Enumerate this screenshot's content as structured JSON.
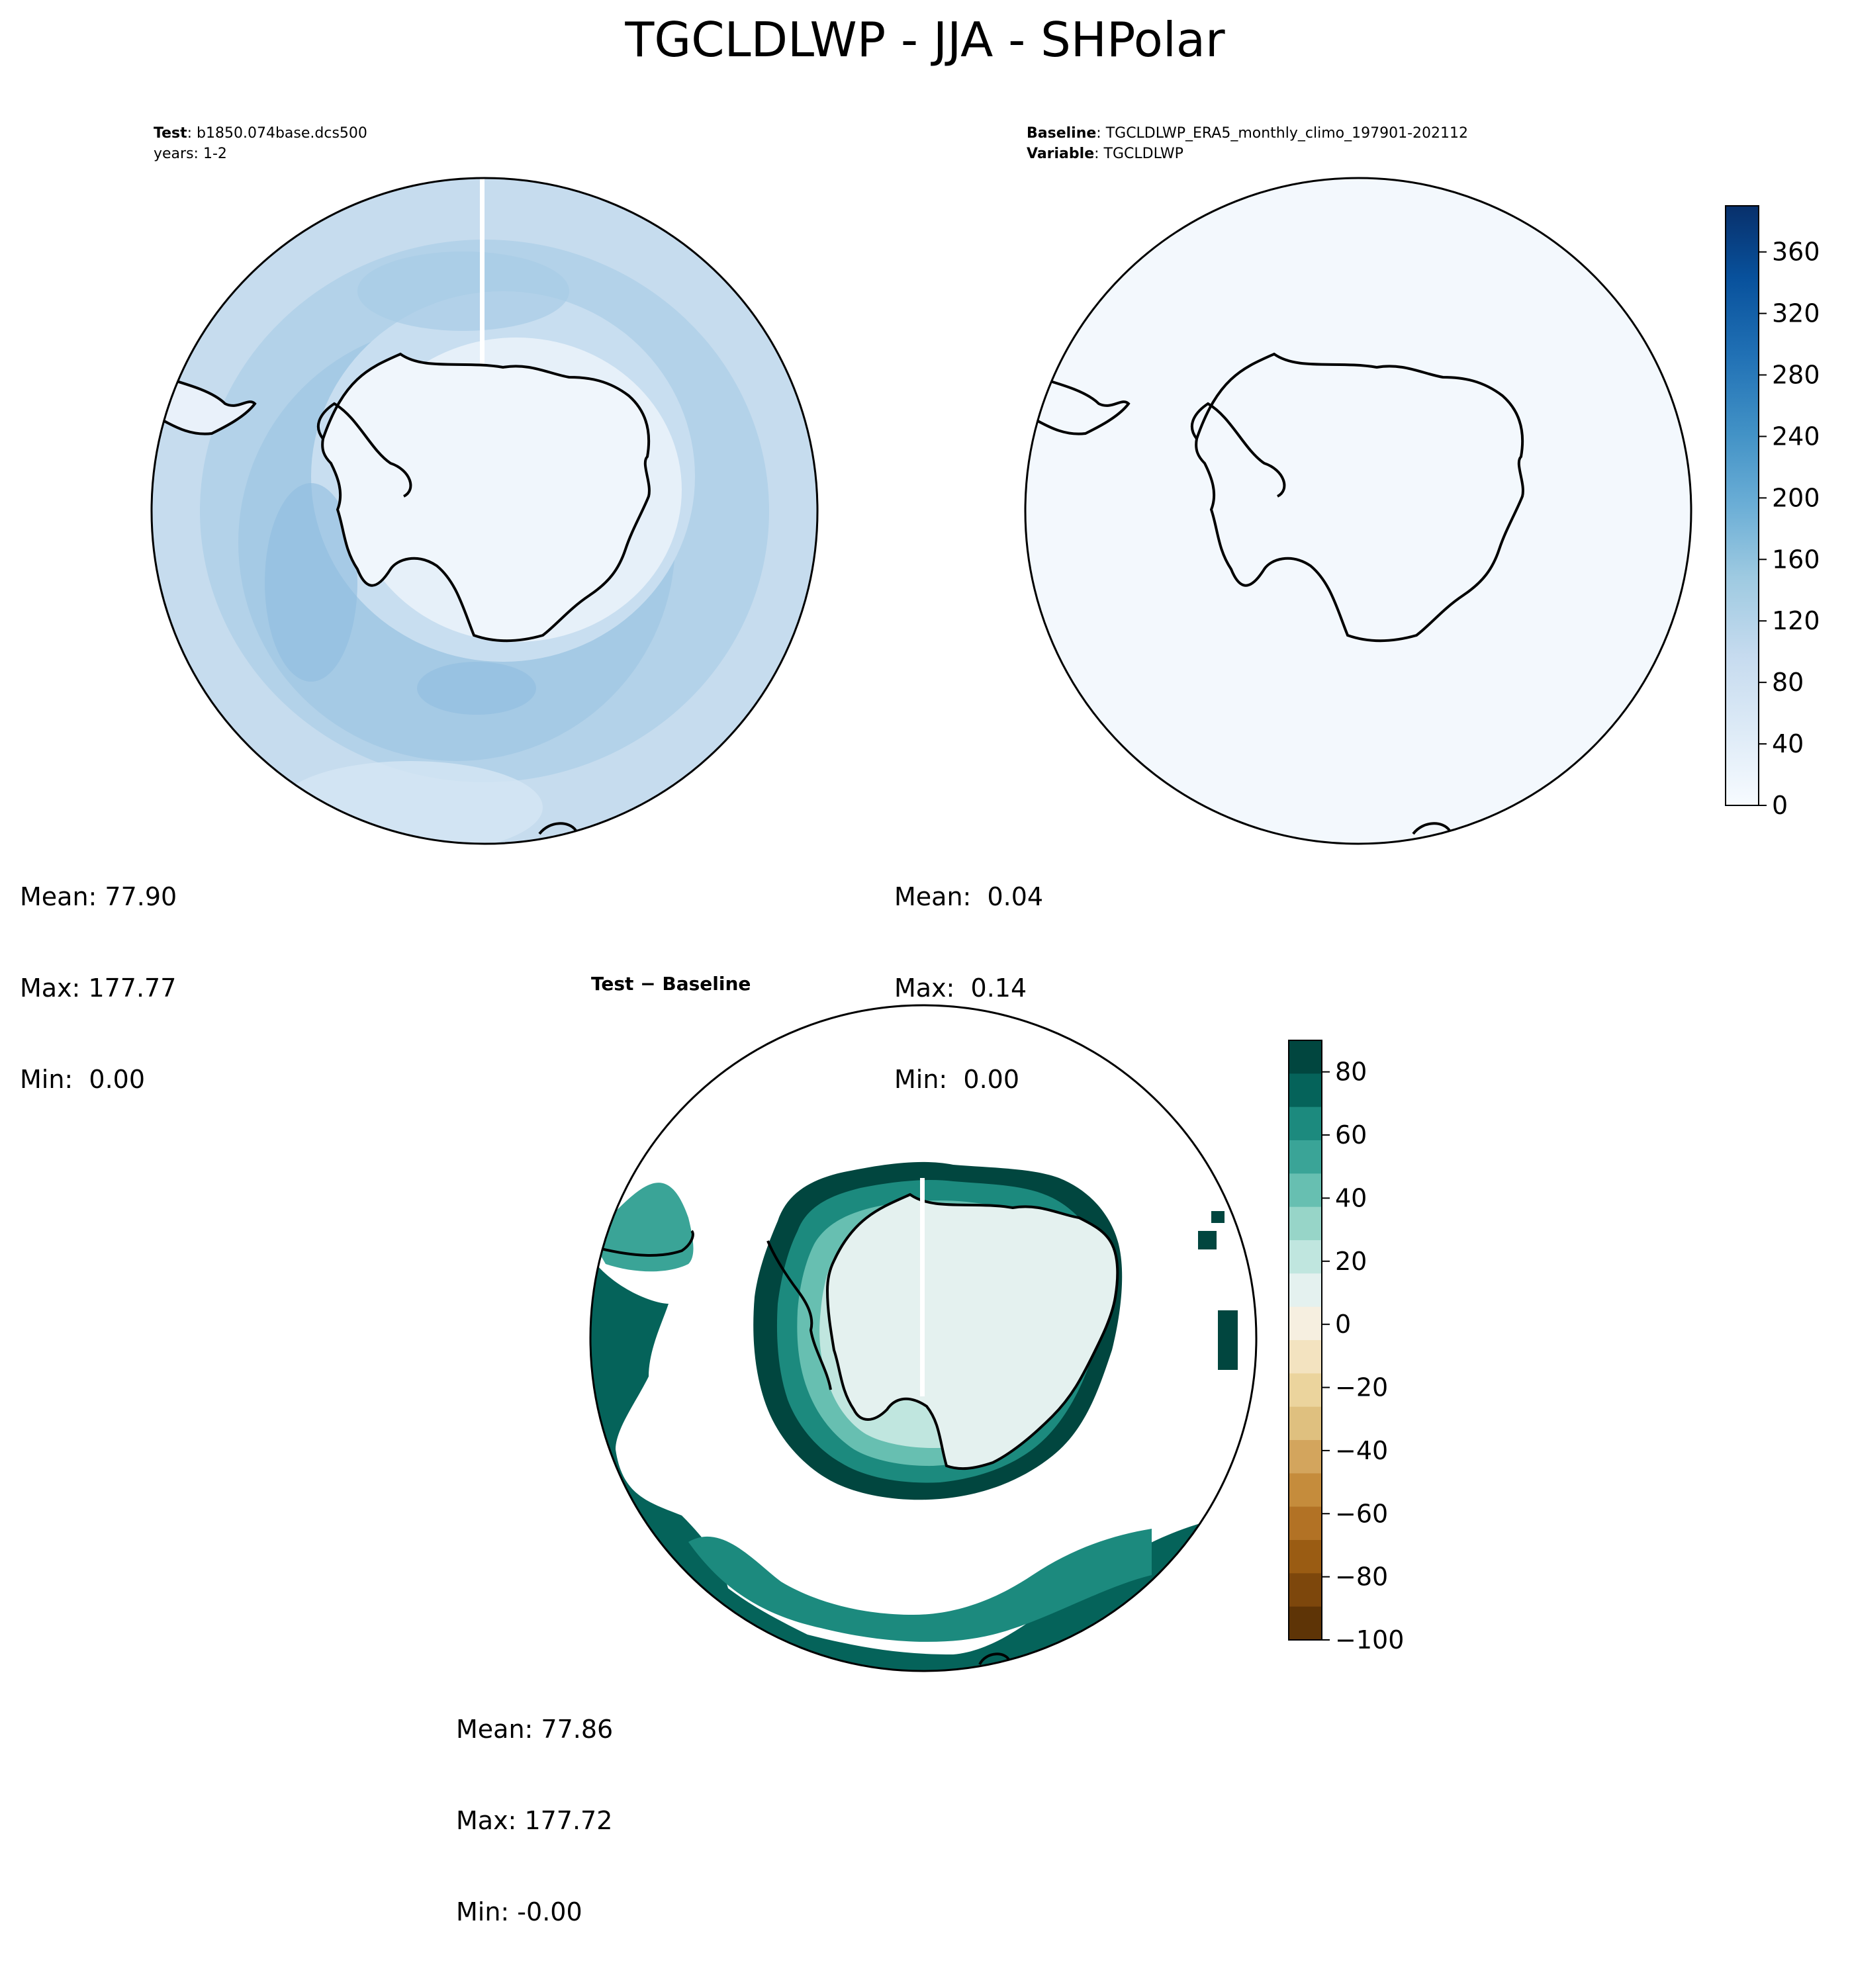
{
  "figure": {
    "title": "TGCLDLWP - JJA - SHPolar"
  },
  "panels": {
    "test": {
      "label_key": "Test",
      "label_value": "b1850.074base.dcs500",
      "years": "years: 1-2",
      "mean": "Mean: 77.90",
      "max": "Max: 177.77",
      "min": "Min:  0.00"
    },
    "baseline": {
      "label_key": "Baseline",
      "label_value": "TGCLDLWP_ERA5_monthly_climo_197901-202112",
      "variable_key": "Variable",
      "variable_value": "TGCLDLWP",
      "mean": "Mean:  0.04",
      "max": "Max:  0.14",
      "min": "Min:  0.00"
    },
    "diff": {
      "title_a": "Test",
      "title_sep": "−",
      "title_b": "Baseline",
      "mean": "Mean: 77.86",
      "max": "Max: 177.72",
      "min": "Min: -0.00"
    }
  },
  "chart_data": [
    {
      "type": "heatmap",
      "projection": "south-polar-stereographic",
      "colormap": "Blues",
      "colorbar_ticks": [
        "0",
        "40",
        "80",
        "120",
        "160",
        "200",
        "240",
        "280",
        "320",
        "360"
      ],
      "colorbar_range": [
        0,
        390
      ],
      "colors": [
        "#f7fbff",
        "#eaf2fb",
        "#dbe9f6",
        "#c6dbef",
        "#9ecae1",
        "#6baed6",
        "#4292c6",
        "#2171b5",
        "#08519c",
        "#08306b"
      ],
      "stats": {
        "mean": 77.9,
        "max": 177.77,
        "min": 0.0
      }
    },
    {
      "type": "heatmap",
      "projection": "south-polar-stereographic",
      "colormap": "Blues",
      "fill": "#f3f8fd",
      "stats": {
        "mean": 0.04,
        "max": 0.14,
        "min": 0.0
      }
    },
    {
      "type": "heatmap",
      "projection": "south-polar-stereographic",
      "colormap": "BrBG",
      "colorbar_ticks": [
        "80",
        "60",
        "40",
        "20",
        "0",
        "−20",
        "−40",
        "−60",
        "−80",
        "−100"
      ],
      "colorbar_range": [
        -100,
        90
      ],
      "colors": [
        "#01463f",
        "#05635a",
        "#1c8a7e",
        "#3aa497",
        "#67bfb1",
        "#97d5c8",
        "#c0e6df",
        "#e4f1ef",
        "#f6efe0",
        "#f3e3c0",
        "#ebd49d",
        "#dfc07f",
        "#d3a55d",
        "#c58c3c",
        "#b27225",
        "#9a5c13",
        "#7d470c",
        "#5e3406"
      ],
      "stats": {
        "mean": 77.86,
        "max": 177.72,
        "min": -0.0
      }
    }
  ]
}
